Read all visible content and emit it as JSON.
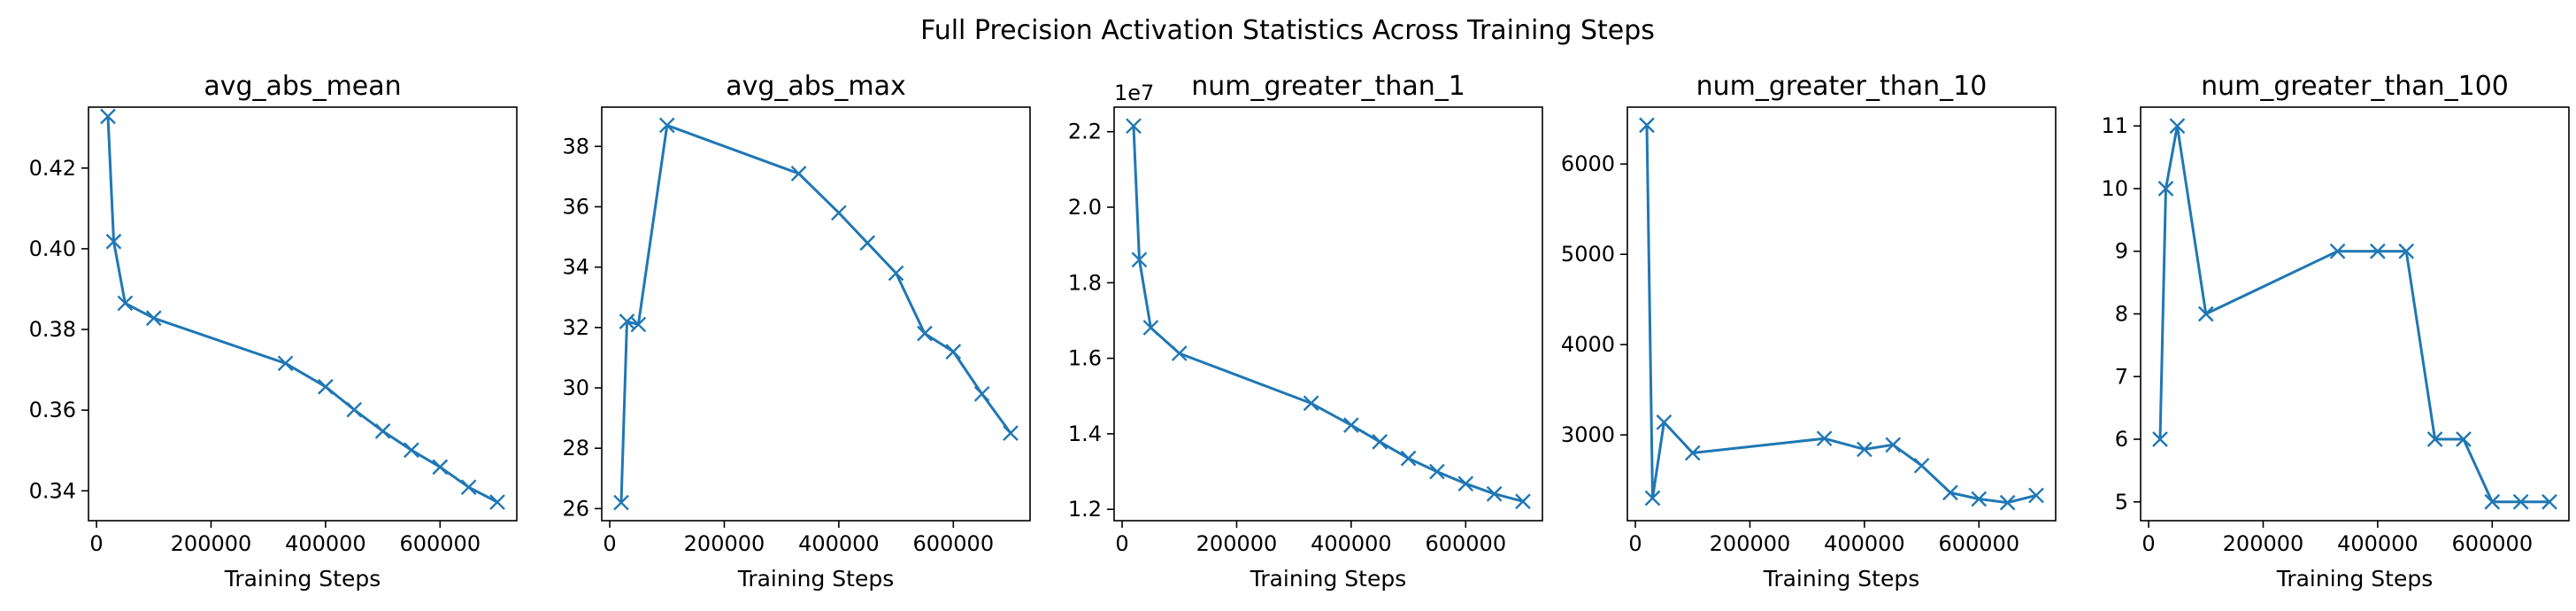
{
  "figure": {
    "suptitle": "Full Precision Activation Statistics Across Training Steps"
  },
  "colors": {
    "line": "#1f77b4",
    "axis": "#000000",
    "background": "#ffffff"
  },
  "chart_data": [
    {
      "type": "line",
      "title": "avg_abs_mean",
      "xlabel": "Training Steps",
      "ylabel": "",
      "marker": "x",
      "grid": false,
      "offset_text": "",
      "xlim": [
        -14000,
        734000
      ],
      "ylim": [
        0.3326,
        0.4351
      ],
      "xticks": [
        0,
        200000,
        400000,
        600000
      ],
      "xtick_labels": [
        "0",
        "200000",
        "400000",
        "600000"
      ],
      "yticks": [
        0.34,
        0.36,
        0.38,
        0.4,
        0.42
      ],
      "ytick_labels": [
        "0.34",
        "0.36",
        "0.38",
        "0.40",
        "0.42"
      ],
      "series": [
        {
          "x": [
            20000,
            30000,
            50000,
            100000,
            330000,
            400000,
            450000,
            500000,
            550000,
            600000,
            650000,
            700000
          ],
          "y": [
            0.4328,
            0.4018,
            0.3865,
            0.3828,
            0.3716,
            0.3658,
            0.3601,
            0.3548,
            0.3501,
            0.3459,
            0.3409,
            0.3372
          ]
        }
      ]
    },
    {
      "type": "line",
      "title": "avg_abs_max",
      "xlabel": "Training Steps",
      "ylabel": "",
      "marker": "x",
      "grid": false,
      "offset_text": "",
      "xlim": [
        -14000,
        734000
      ],
      "ylim": [
        25.6,
        39.3
      ],
      "xticks": [
        0,
        200000,
        400000,
        600000
      ],
      "xtick_labels": [
        "0",
        "200000",
        "400000",
        "600000"
      ],
      "yticks": [
        26,
        28,
        30,
        32,
        34,
        36,
        38
      ],
      "ytick_labels": [
        "26",
        "28",
        "30",
        "32",
        "34",
        "36",
        "38"
      ],
      "series": [
        {
          "x": [
            20000,
            30000,
            50000,
            100000,
            330000,
            400000,
            450000,
            500000,
            550000,
            600000,
            650000,
            700000
          ],
          "y": [
            26.2,
            32.2,
            32.1,
            38.7,
            37.1,
            35.8,
            34.8,
            33.8,
            31.8,
            31.2,
            29.8,
            28.5
          ]
        }
      ]
    },
    {
      "type": "line",
      "title": "num_greater_than_1",
      "xlabel": "Training Steps",
      "ylabel": "",
      "marker": "x",
      "grid": false,
      "offset_text": "1e7",
      "xlim": [
        -14000,
        734000
      ],
      "ylim": [
        1.17,
        2.265
      ],
      "xticks": [
        0,
        200000,
        400000,
        600000
      ],
      "xtick_labels": [
        "0",
        "200000",
        "400000",
        "600000"
      ],
      "yticks": [
        1.2,
        1.4,
        1.6,
        1.8,
        2.0,
        2.2
      ],
      "ytick_labels": [
        "1.2",
        "1.4",
        "1.6",
        "1.8",
        "2.0",
        "2.2"
      ],
      "series": [
        {
          "x": [
            20000,
            30000,
            50000,
            100000,
            330000,
            400000,
            450000,
            500000,
            550000,
            600000,
            650000,
            700000
          ],
          "y": [
            2.215,
            1.861,
            1.681,
            1.613,
            1.481,
            1.423,
            1.379,
            1.335,
            1.3,
            1.268,
            1.241,
            1.221
          ]
        }
      ]
    },
    {
      "type": "line",
      "title": "num_greater_than_10",
      "xlabel": "Training Steps",
      "ylabel": "",
      "marker": "x",
      "grid": false,
      "offset_text": "",
      "xlim": [
        -14000,
        734000
      ],
      "ylim": [
        2050,
        6630
      ],
      "xticks": [
        0,
        200000,
        400000,
        600000
      ],
      "xtick_labels": [
        "0",
        "200000",
        "400000",
        "600000"
      ],
      "yticks": [
        3000,
        4000,
        5000,
        6000
      ],
      "ytick_labels": [
        "3000",
        "4000",
        "5000",
        "6000"
      ],
      "series": [
        {
          "x": [
            20000,
            30000,
            50000,
            100000,
            330000,
            400000,
            450000,
            500000,
            550000,
            600000,
            650000,
            700000
          ],
          "y": [
            6430,
            2300,
            3140,
            2800,
            2960,
            2840,
            2890,
            2660,
            2360,
            2290,
            2250,
            2330
          ]
        }
      ]
    },
    {
      "type": "line",
      "title": "num_greater_than_100",
      "xlabel": "Training Steps",
      "ylabel": "",
      "marker": "x",
      "grid": false,
      "offset_text": "",
      "xlim": [
        -14000,
        734000
      ],
      "ylim": [
        4.7,
        11.3
      ],
      "xticks": [
        0,
        200000,
        400000,
        600000
      ],
      "xtick_labels": [
        "0",
        "200000",
        "400000",
        "600000"
      ],
      "yticks": [
        5,
        6,
        7,
        8,
        9,
        10,
        11
      ],
      "ytick_labels": [
        "5",
        "6",
        "7",
        "8",
        "9",
        "10",
        "11"
      ],
      "series": [
        {
          "x": [
            20000,
            30000,
            50000,
            100000,
            330000,
            400000,
            450000,
            500000,
            550000,
            600000,
            650000,
            700000
          ],
          "y": [
            6,
            10,
            11,
            8,
            9,
            9,
            9,
            6,
            6,
            5,
            5,
            5
          ]
        }
      ]
    }
  ]
}
